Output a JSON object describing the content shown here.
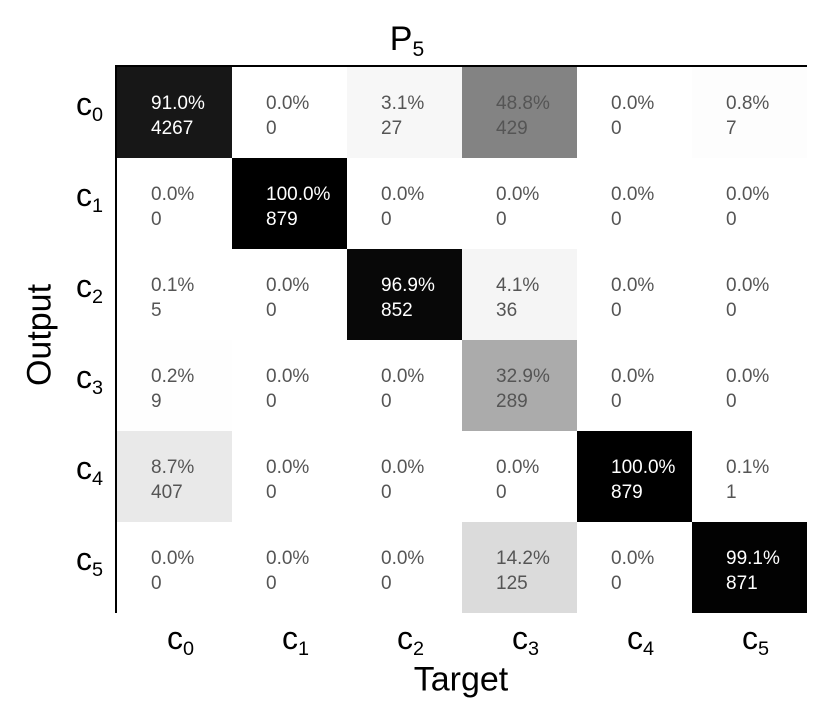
{
  "chart_data": {
    "type": "heatmap",
    "title": {
      "base": "P",
      "sub": "5"
    },
    "xlabel": "Target",
    "ylabel": "Output",
    "x_ticks": [
      {
        "base": "c",
        "sub": "0"
      },
      {
        "base": "c",
        "sub": "1"
      },
      {
        "base": "c",
        "sub": "2"
      },
      {
        "base": "c",
        "sub": "3"
      },
      {
        "base": "c",
        "sub": "4"
      },
      {
        "base": "c",
        "sub": "5"
      }
    ],
    "y_ticks": [
      {
        "base": "c",
        "sub": "0"
      },
      {
        "base": "c",
        "sub": "1"
      },
      {
        "base": "c",
        "sub": "2"
      },
      {
        "base": "c",
        "sub": "3"
      },
      {
        "base": "c",
        "sub": "4"
      },
      {
        "base": "c",
        "sub": "5"
      }
    ],
    "percent_labels": [
      [
        "91.0%",
        "0.0%",
        "3.1%",
        "48.8%",
        "0.0%",
        "0.8%"
      ],
      [
        "0.0%",
        "100.0%",
        "0.0%",
        "0.0%",
        "0.0%",
        "0.0%"
      ],
      [
        "0.1%",
        "0.0%",
        "96.9%",
        "4.1%",
        "0.0%",
        "0.0%"
      ],
      [
        "0.2%",
        "0.0%",
        "0.0%",
        "32.9%",
        "0.0%",
        "0.0%"
      ],
      [
        "8.7%",
        "0.0%",
        "0.0%",
        "0.0%",
        "100.0%",
        "0.1%"
      ],
      [
        "0.0%",
        "0.0%",
        "0.0%",
        "14.2%",
        "0.0%",
        "99.1%"
      ]
    ],
    "count_labels": [
      [
        "4267",
        "0",
        "27",
        "429",
        "0",
        "7"
      ],
      [
        "0",
        "879",
        "0",
        "0",
        "0",
        "0"
      ],
      [
        "5",
        "0",
        "852",
        "36",
        "0",
        "0"
      ],
      [
        "9",
        "0",
        "0",
        "289",
        "0",
        "0"
      ],
      [
        "407",
        "0",
        "0",
        "0",
        "879",
        "1"
      ],
      [
        "0",
        "0",
        "0",
        "125",
        "0",
        "871"
      ]
    ],
    "percent_values": [
      [
        91.0,
        0.0,
        3.1,
        48.8,
        0.0,
        0.8
      ],
      [
        0.0,
        100.0,
        0.0,
        0.0,
        0.0,
        0.0
      ],
      [
        0.1,
        0.0,
        96.9,
        4.1,
        0.0,
        0.0
      ],
      [
        0.2,
        0.0,
        0.0,
        32.9,
        0.0,
        0.0
      ],
      [
        8.7,
        0.0,
        0.0,
        0.0,
        100.0,
        0.1
      ],
      [
        0.0,
        0.0,
        0.0,
        14.2,
        0.0,
        99.1
      ]
    ],
    "colors": {
      "high": "#000000",
      "low": "#ffffff",
      "text_dark": "#555555",
      "text_light": "#ffffff"
    },
    "grid": false
  }
}
